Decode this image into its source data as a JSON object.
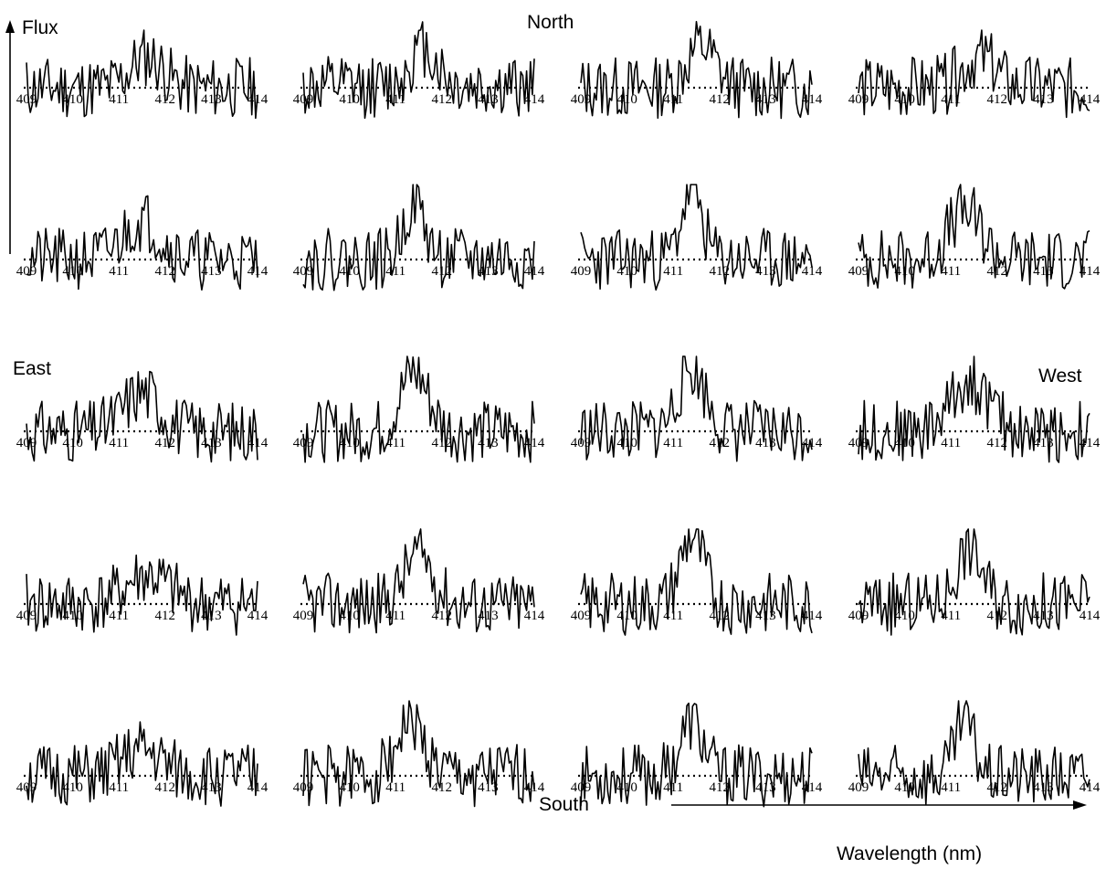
{
  "labels": {
    "flux": "Flux",
    "north": "North",
    "south": "South",
    "east": "East",
    "west": "West",
    "wavelength": "Wavelength (nm)"
  },
  "chart_data": {
    "type": "line",
    "layout": "5x4 grid of small spectra",
    "x_unit": "nm",
    "xlim": [
      409,
      414
    ],
    "x_ticks": [
      "409",
      "410",
      "411",
      "412",
      "413",
      "414"
    ],
    "y_reference": 0,
    "zero_line_style": "dotted",
    "samples": 121,
    "panels": [
      {
        "row": 1,
        "col": 1,
        "seed": 11,
        "peak": {
          "center": 411.6,
          "width": 0.35,
          "amp": 0.55
        }
      },
      {
        "row": 1,
        "col": 2,
        "seed": 12,
        "peak": {
          "center": 411.6,
          "width": 0.3,
          "amp": 0.7
        }
      },
      {
        "row": 1,
        "col": 3,
        "seed": 13,
        "peak": {
          "center": 411.6,
          "width": 0.3,
          "amp": 0.75
        }
      },
      {
        "row": 1,
        "col": 4,
        "seed": 14,
        "peak": {
          "center": 411.6,
          "width": 0.35,
          "amp": 0.55
        }
      },
      {
        "row": 2,
        "col": 1,
        "seed": 21,
        "peak": {
          "center": 411.5,
          "width": 0.4,
          "amp": 0.7
        }
      },
      {
        "row": 2,
        "col": 2,
        "seed": 22,
        "peak": {
          "center": 411.4,
          "width": 0.22,
          "amp": 1.05
        }
      },
      {
        "row": 2,
        "col": 3,
        "seed": 23,
        "peak": {
          "center": 411.4,
          "width": 0.22,
          "amp": 1.25
        }
      },
      {
        "row": 2,
        "col": 4,
        "seed": 24,
        "peak": {
          "center": 411.3,
          "width": 0.35,
          "amp": 0.85
        }
      },
      {
        "row": 3,
        "col": 1,
        "seed": 31,
        "peak": {
          "center": 411.5,
          "width": 0.4,
          "amp": 0.7
        }
      },
      {
        "row": 3,
        "col": 2,
        "seed": 32,
        "peak": {
          "center": 411.4,
          "width": 0.3,
          "amp": 1.05
        }
      },
      {
        "row": 3,
        "col": 3,
        "seed": 33,
        "peak": {
          "center": 411.4,
          "width": 0.3,
          "amp": 1.1
        }
      },
      {
        "row": 3,
        "col": 4,
        "seed": 34,
        "peak": {
          "center": 411.4,
          "width": 0.4,
          "amp": 0.9
        }
      },
      {
        "row": 4,
        "col": 1,
        "seed": 41,
        "peak": {
          "center": 411.6,
          "width": 0.45,
          "amp": 0.5
        }
      },
      {
        "row": 4,
        "col": 2,
        "seed": 42,
        "peak": {
          "center": 411.5,
          "width": 0.3,
          "amp": 0.9
        }
      },
      {
        "row": 4,
        "col": 3,
        "seed": 43,
        "peak": {
          "center": 411.4,
          "width": 0.25,
          "amp": 1.2
        }
      },
      {
        "row": 4,
        "col": 4,
        "seed": 44,
        "peak": {
          "center": 411.4,
          "width": 0.28,
          "amp": 1.0
        }
      },
      {
        "row": 5,
        "col": 1,
        "seed": 51,
        "peak": {
          "center": 411.5,
          "width": 0.4,
          "amp": 0.45
        }
      },
      {
        "row": 5,
        "col": 2,
        "seed": 52,
        "peak": {
          "center": 411.3,
          "width": 0.3,
          "amp": 0.95
        }
      },
      {
        "row": 5,
        "col": 3,
        "seed": 53,
        "peak": {
          "center": 411.4,
          "width": 0.25,
          "amp": 0.95
        }
      },
      {
        "row": 5,
        "col": 4,
        "seed": 54,
        "peak": {
          "center": 411.3,
          "width": 0.2,
          "amp": 1.0
        }
      }
    ]
  }
}
